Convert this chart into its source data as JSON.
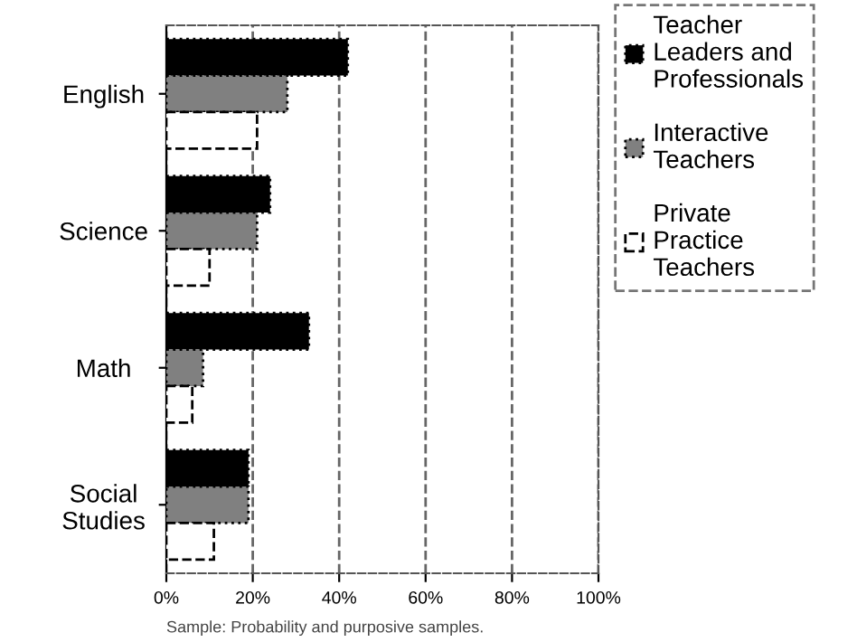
{
  "chart_data": {
    "type": "bar",
    "orientation": "horizontal",
    "categories": [
      "English",
      "Science",
      "Math",
      "Social\nStudies"
    ],
    "series": [
      {
        "name": "Teacher\nLeaders and\nProfessionals",
        "color": "#000000",
        "values": [
          42,
          24,
          33,
          19
        ]
      },
      {
        "name": "Interactive\nTeachers",
        "color": "#808080",
        "values": [
          28,
          21,
          8.5,
          19
        ]
      },
      {
        "name": "Private\nPractice\nTeachers",
        "color": "#ffffff",
        "values": [
          21,
          10,
          6,
          11
        ]
      }
    ],
    "xlim": [
      0,
      100
    ],
    "xticks": [
      {
        "value": 0,
        "label": "0%"
      },
      {
        "value": 20,
        "label": "20%"
      },
      {
        "value": 40,
        "label": "40%"
      },
      {
        "value": 60,
        "label": "60%"
      },
      {
        "value": 80,
        "label": "80%"
      },
      {
        "value": 100,
        "label": "100%"
      }
    ],
    "grid": "x",
    "legend": "right",
    "annotations": [
      "Sample: Probability and purposive samples."
    ]
  }
}
